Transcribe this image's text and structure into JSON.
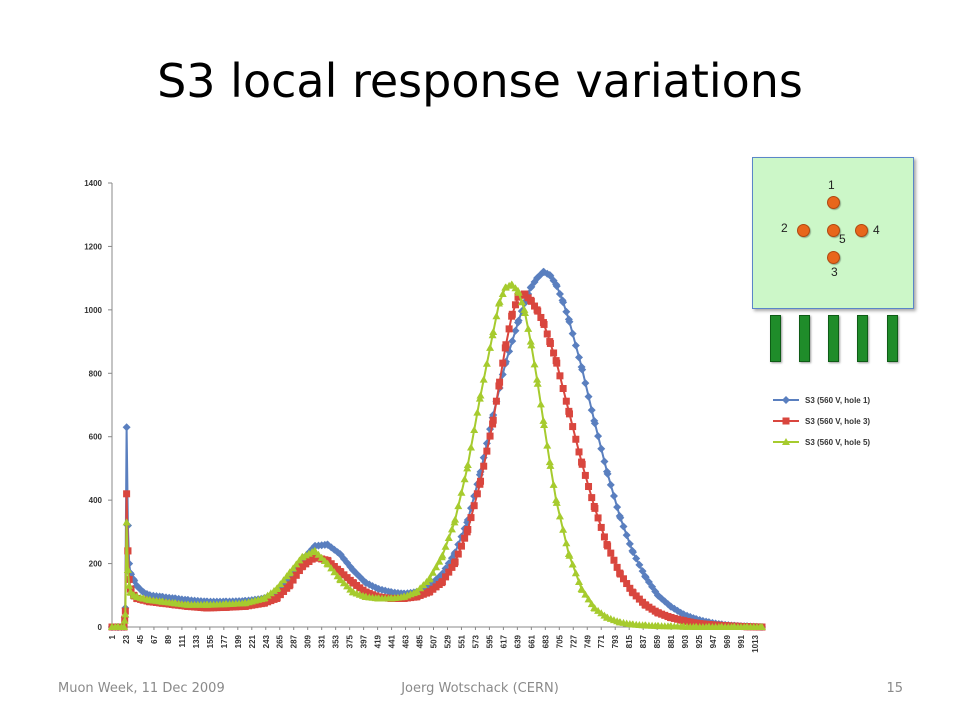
{
  "slide": {
    "title": "S3 local response variations",
    "footer_left": "Muon Week, 11 Dec 2009",
    "footer_center": "Joerg Wotschack (CERN)",
    "footer_right": "15"
  },
  "inset": {
    "hole_labels": [
      "1",
      "2",
      "3",
      "4",
      "5"
    ],
    "hole_color": "#e8661c",
    "box_color": "#ccf7c8",
    "bar_color": "#1f8c2a"
  },
  "chart_data": {
    "type": "line",
    "title": "",
    "xlabel": "",
    "ylabel": "",
    "ylim": [
      0,
      1400
    ],
    "yticks": [
      0,
      200,
      400,
      600,
      800,
      1000,
      1200,
      1400
    ],
    "xlim": [
      1,
      1024
    ],
    "xticks": [
      1,
      23,
      45,
      67,
      89,
      111,
      133,
      155,
      177,
      199,
      221,
      243,
      265,
      287,
      309,
      331,
      353,
      375,
      397,
      419,
      441,
      463,
      485,
      507,
      529,
      551,
      573,
      595,
      617,
      639,
      661,
      683,
      705,
      727,
      749,
      771,
      793,
      815,
      837,
      859,
      881,
      903,
      925,
      947,
      969,
      991,
      1013
    ],
    "grid": false,
    "legend_position": "right",
    "series": [
      {
        "name": "S3 (560 V, hole 1)",
        "color": "#5a7fbf",
        "marker": "diamond",
        "x": [
          1,
          10,
          20,
          22,
          24,
          26,
          28,
          30,
          35,
          40,
          50,
          60,
          80,
          100,
          120,
          150,
          180,
          210,
          240,
          260,
          280,
          300,
          320,
          340,
          360,
          380,
          400,
          420,
          440,
          460,
          480,
          500,
          520,
          540,
          560,
          580,
          600,
          620,
          640,
          650,
          660,
          670,
          680,
          690,
          700,
          710,
          720,
          740,
          760,
          780,
          800,
          820,
          840,
          860,
          880,
          900,
          920,
          940,
          960,
          980,
          1000,
          1024
        ],
        "y": [
          0,
          0,
          0,
          60,
          630,
          320,
          200,
          170,
          150,
          130,
          110,
          100,
          95,
          90,
          85,
          80,
          80,
          82,
          90,
          110,
          150,
          210,
          255,
          260,
          230,
          180,
          140,
          120,
          110,
          105,
          110,
          130,
          165,
          230,
          330,
          480,
          660,
          830,
          960,
          1020,
          1070,
          1100,
          1120,
          1110,
          1080,
          1030,
          970,
          820,
          650,
          490,
          350,
          240,
          160,
          100,
          65,
          40,
          25,
          15,
          8,
          4,
          2,
          0
        ]
      },
      {
        "name": "S3 (560 V, hole 3)",
        "color": "#d9463e",
        "marker": "square",
        "x": [
          1,
          10,
          20,
          22,
          24,
          26,
          28,
          30,
          35,
          40,
          50,
          60,
          80,
          100,
          120,
          150,
          180,
          210,
          240,
          260,
          280,
          300,
          320,
          340,
          360,
          380,
          400,
          420,
          440,
          460,
          480,
          500,
          520,
          540,
          560,
          580,
          600,
          610,
          620,
          630,
          640,
          650,
          660,
          670,
          680,
          690,
          700,
          720,
          740,
          760,
          780,
          800,
          820,
          840,
          860,
          880,
          900,
          920,
          940,
          960,
          980,
          1000,
          1024
        ],
        "y": [
          0,
          0,
          0,
          50,
          420,
          240,
          150,
          120,
          100,
          90,
          85,
          80,
          75,
          70,
          65,
          60,
          62,
          65,
          75,
          90,
          130,
          190,
          220,
          210,
          175,
          140,
          110,
          95,
          90,
          90,
          95,
          110,
          140,
          200,
          300,
          450,
          640,
          760,
          880,
          980,
          1040,
          1050,
          1030,
          1000,
          960,
          900,
          840,
          680,
          520,
          380,
          260,
          170,
          110,
          70,
          45,
          30,
          20,
          12,
          8,
          5,
          3,
          1,
          0
        ]
      },
      {
        "name": "S3 (560 V, hole 5)",
        "color": "#a6cb2e",
        "marker": "triangle",
        "x": [
          1,
          10,
          20,
          22,
          24,
          26,
          28,
          30,
          35,
          40,
          50,
          60,
          80,
          100,
          120,
          150,
          180,
          210,
          240,
          260,
          280,
          300,
          320,
          340,
          360,
          380,
          400,
          420,
          440,
          460,
          480,
          500,
          520,
          540,
          560,
          580,
          600,
          610,
          620,
          630,
          640,
          650,
          660,
          670,
          680,
          690,
          700,
          720,
          740,
          760,
          780,
          800,
          820,
          840,
          860,
          880,
          900,
          920,
          940,
          960,
          980,
          1000,
          1024
        ],
        "y": [
          0,
          0,
          0,
          40,
          330,
          180,
          130,
          110,
          100,
          95,
          90,
          85,
          80,
          75,
          70,
          70,
          72,
          75,
          90,
          120,
          170,
          220,
          240,
          200,
          150,
          110,
          95,
          90,
          90,
          95,
          110,
          150,
          220,
          330,
          500,
          720,
          920,
          1020,
          1070,
          1080,
          1060,
          1000,
          900,
          780,
          650,
          520,
          400,
          230,
          120,
          60,
          30,
          15,
          8,
          5,
          3,
          2,
          1,
          0,
          0,
          0,
          0,
          0,
          0
        ]
      }
    ]
  }
}
